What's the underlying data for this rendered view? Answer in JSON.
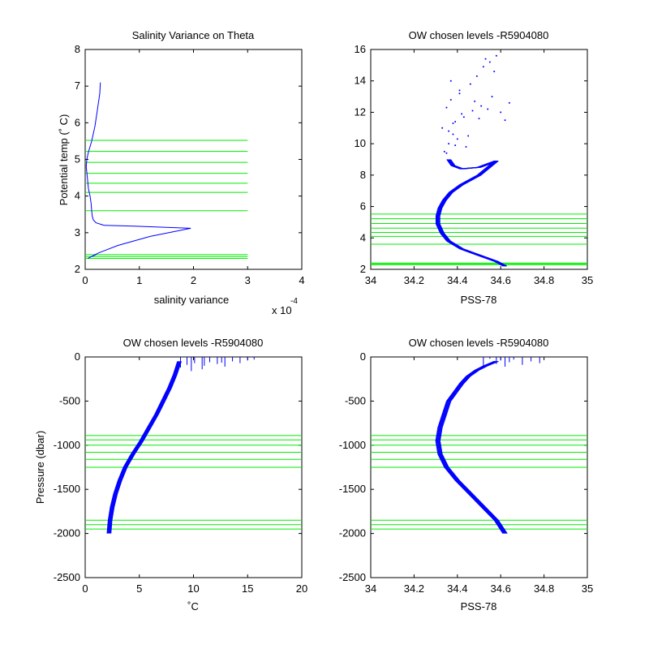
{
  "chart_data": [
    {
      "type": "line",
      "id": "variance",
      "title": "Salinity Variance on Theta",
      "xlabel": "salinity variance",
      "ylabel": "Potential temp (˚ C)",
      "x_exponent_label": "x 10",
      "x_exponent": "-4",
      "xlim": [
        0,
        4
      ],
      "ylim": [
        2,
        8
      ],
      "xticks": [
        0,
        1,
        2,
        3,
        4
      ],
      "yticks": [
        2,
        3,
        4,
        5,
        6,
        7,
        8
      ],
      "grid": false,
      "series": [
        {
          "color": "#0000ff",
          "x": [
            0.28,
            0.27,
            0.22,
            0.18,
            0.12,
            0.06,
            0.03,
            0.02,
            0.04,
            0.06,
            0.09,
            0.11,
            0.12,
            0.13,
            0.15,
            0.2,
            0.35,
            0.9,
            1.95,
            1.2,
            0.6,
            0.25,
            0.05,
            0.12,
            0.2
          ],
          "y": [
            7.1,
            6.8,
            6.3,
            5.9,
            5.5,
            5.2,
            5.0,
            4.8,
            4.5,
            4.2,
            4.0,
            3.8,
            3.6,
            3.45,
            3.35,
            3.27,
            3.2,
            3.18,
            3.12,
            2.9,
            2.65,
            2.45,
            2.3,
            2.35,
            2.4
          ]
        }
      ],
      "reference_lines_y": [
        2.3,
        2.35,
        2.4,
        3.6,
        4.1,
        4.35,
        4.62,
        4.92,
        5.22,
        5.52
      ],
      "reference_lines_x_range": [
        0,
        3
      ],
      "reference_color": "#00ee00"
    },
    {
      "type": "scatter",
      "id": "theta_sal",
      "title": "OW chosen levels -R5904080",
      "xlabel": "PSS-78",
      "ylabel": "",
      "xlim": [
        34,
        35
      ],
      "ylim": [
        2,
        16
      ],
      "xticks": [
        34,
        34.2,
        34.4,
        34.6,
        34.8,
        35
      ],
      "yticks": [
        2,
        4,
        6,
        8,
        10,
        12,
        14,
        16
      ],
      "grid": false,
      "series": [
        {
          "color": "#0000ff",
          "x": [
            34.62,
            34.58,
            34.5,
            34.42,
            34.36,
            34.33,
            34.31,
            34.31,
            34.32,
            34.34,
            34.37,
            34.42,
            34.5,
            34.58,
            34.5,
            34.42,
            34.38,
            34.36
          ],
          "y": [
            2.2,
            2.5,
            2.9,
            3.3,
            3.8,
            4.3,
            4.9,
            5.4,
            5.9,
            6.4,
            6.9,
            7.4,
            8.0,
            8.9,
            8.5,
            8.4,
            8.6,
            9.0
          ],
          "spread": 0.018
        }
      ],
      "scatter_points": {
        "x": [
          34.34,
          34.36,
          34.38,
          34.33,
          34.39,
          34.42,
          34.35,
          34.37,
          34.41,
          34.46,
          34.49,
          34.52,
          34.55,
          34.58,
          34.64,
          34.44,
          34.4,
          34.36,
          34.38,
          34.43,
          34.47,
          34.51,
          34.56,
          34.6,
          34.35,
          34.39,
          34.45,
          34.5,
          34.54,
          34.62,
          34.37,
          34.41,
          34.48,
          34.53,
          34.57
        ],
        "y": [
          9.5,
          10.0,
          10.6,
          11.0,
          11.4,
          11.9,
          12.3,
          12.8,
          13.2,
          13.8,
          14.3,
          14.9,
          15.2,
          15.6,
          12.6,
          9.8,
          10.3,
          10.8,
          11.3,
          11.7,
          12.1,
          12.4,
          13.0,
          12.0,
          9.4,
          9.9,
          10.5,
          11.6,
          12.2,
          11.5,
          14.0,
          13.4,
          12.7,
          15.4,
          14.6
        ]
      },
      "reference_lines_y": [
        2.3,
        2.35,
        2.4,
        3.6,
        4.1,
        4.35,
        4.62,
        4.92,
        5.22,
        5.52
      ],
      "reference_lines_x_range": [
        34,
        35
      ],
      "reference_color": "#00ee00"
    },
    {
      "type": "line",
      "id": "pres_temp",
      "title": "OW chosen levels -R5904080",
      "xlabel": "˚C",
      "ylabel": "Pressure (dbar)",
      "xlim": [
        0,
        20
      ],
      "ylim": [
        -2500,
        0
      ],
      "xticks": [
        0,
        5,
        10,
        15,
        20
      ],
      "yticks": [
        -2500,
        -2000,
        -1500,
        -1000,
        -500,
        0
      ],
      "grid": false,
      "series": [
        {
          "color": "#0000ff",
          "x": [
            2.2,
            2.3,
            2.5,
            2.8,
            3.2,
            3.7,
            4.4,
            5.2,
            5.9,
            6.6,
            7.2,
            7.8,
            8.3,
            8.7
          ],
          "y": [
            -2000,
            -1850,
            -1700,
            -1550,
            -1400,
            -1250,
            -1100,
            -950,
            -800,
            -650,
            -500,
            -350,
            -200,
            -50
          ],
          "spread": 0.35
        }
      ],
      "surface_spikes": {
        "x": [
          8.8,
          9.4,
          10.1,
          10.8,
          11.5,
          12.2,
          12.9,
          13.6,
          14.3,
          15.0,
          15.6,
          9.8,
          11.0,
          12.6
        ],
        "y": [
          -120,
          -90,
          -70,
          -140,
          -60,
          -80,
          -110,
          -50,
          -70,
          -40,
          -30,
          -160,
          -100,
          -65
        ]
      },
      "reference_lines_y": [
        -1950,
        -1900,
        -1850,
        -1250,
        -1160,
        -1080,
        -1000,
        -940,
        -890
      ],
      "reference_lines_x_range": [
        0,
        20
      ],
      "reference_color": "#00ee00"
    },
    {
      "type": "line",
      "id": "pres_sal",
      "title": "OW chosen levels -R5904080",
      "xlabel": "PSS-78",
      "ylabel": "",
      "xlim": [
        34,
        35
      ],
      "ylim": [
        -2500,
        0
      ],
      "xticks": [
        34,
        34.2,
        34.4,
        34.6,
        34.8,
        35
      ],
      "yticks": [
        -2500,
        -2000,
        -1500,
        -1000,
        -500,
        0
      ],
      "grid": false,
      "series": [
        {
          "color": "#0000ff",
          "x": [
            34.62,
            34.58,
            34.52,
            34.46,
            34.4,
            34.35,
            34.32,
            34.31,
            34.32,
            34.34,
            34.36,
            34.39,
            34.42,
            34.45,
            34.49,
            34.53,
            34.58
          ],
          "y": [
            -2000,
            -1850,
            -1700,
            -1550,
            -1400,
            -1250,
            -1100,
            -950,
            -800,
            -650,
            -500,
            -400,
            -300,
            -220,
            -150,
            -100,
            -50
          ],
          "spread": 0.02
        }
      ],
      "surface_spikes": {
        "x": [
          34.58,
          34.6,
          34.62,
          34.64,
          34.66,
          34.7,
          34.74,
          34.78,
          34.55,
          34.52
        ],
        "y": [
          -80,
          -40,
          -110,
          -60,
          -30,
          -90,
          -50,
          -70,
          -20,
          -130
        ]
      },
      "reference_lines_y": [
        -1950,
        -1900,
        -1850,
        -1250,
        -1160,
        -1080,
        -1000,
        -940,
        -890
      ],
      "reference_lines_x_range": [
        34,
        35
      ],
      "reference_color": "#00ee00"
    }
  ]
}
